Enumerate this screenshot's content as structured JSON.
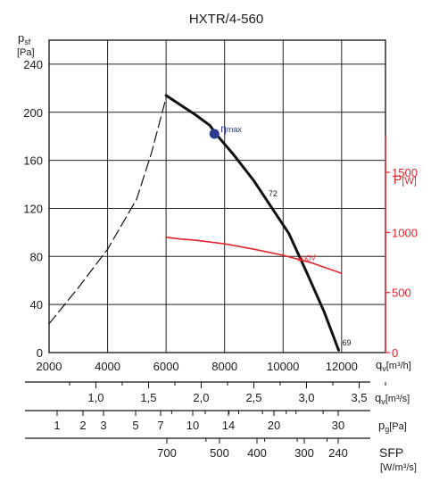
{
  "chart_data": {
    "type": "line",
    "title": "HXTR/4-560",
    "y_left": {
      "label": "p",
      "label_sub": "sf",
      "unit": "[Pa]",
      "range": [
        0,
        260
      ],
      "ticks": [
        0,
        40,
        80,
        120,
        160,
        200,
        240
      ]
    },
    "y_right": {
      "label": "P",
      "unit": "[W]",
      "range": [
        0,
        2600
      ],
      "ticks": [
        0,
        500,
        1000,
        1500
      ]
    },
    "x_axis": {
      "label": "q",
      "label_sub": "v",
      "unit": "[m³/h]",
      "range": [
        2000,
        13500
      ],
      "ticks": [
        2000,
        4000,
        6000,
        8000,
        10000,
        12000
      ],
      "tick_labels": [
        "2000",
        "4000",
        "6000",
        "8000",
        "10000",
        "12000"
      ]
    },
    "scales": [
      {
        "label": "q",
        "label_sub": "v",
        "unit": "[m³/s]",
        "ticks": [
          1.0,
          1.5,
          2.0,
          2.5,
          3.0,
          3.5
        ],
        "tick_labels": [
          "1,0",
          "1,5",
          "2,0",
          "2,5",
          "3,0",
          "3,5"
        ]
      },
      {
        "label": "p",
        "label_sub": "g",
        "unit": "[Pa]",
        "ticks": [
          1,
          2,
          3,
          5,
          7,
          10,
          14,
          20,
          30
        ],
        "tick_labels": [
          "1",
          "2",
          "3",
          "5",
          "7",
          "10",
          "14",
          "20",
          "30"
        ]
      },
      {
        "label": "SFP",
        "unit": "[W/m³/s]",
        "ticks": [
          700,
          500,
          400,
          300,
          240
        ],
        "tick_labels": [
          "700",
          "500",
          "400",
          "300",
          "240"
        ]
      }
    ],
    "series": [
      {
        "name": "",
        "axis": "left",
        "style": "solid",
        "color": "#111111",
        "x": [
          6000,
          6500,
          7000,
          7500,
          7700,
          8300,
          9000,
          9600,
          10200,
          10800,
          11400,
          11900
        ],
        "y": [
          214,
          206,
          198,
          189,
          182,
          165,
          143,
          121,
          99,
          67,
          34,
          2
        ]
      },
      {
        "name": "",
        "axis": "left",
        "style": "dashed",
        "color": "#111111",
        "x": [
          2000,
          3000,
          4000,
          5000,
          5500,
          6000
        ],
        "y": [
          24,
          54,
          86,
          128,
          166,
          212
        ]
      },
      {
        "name": "",
        "axis": "right",
        "style": "solid",
        "color": "#e2242b",
        "x": [
          6000,
          6500,
          7000,
          8000,
          9000,
          10000,
          11000,
          12000
        ],
        "y": [
          960,
          945,
          935,
          905,
          860,
          810,
          745,
          660
        ]
      }
    ],
    "markers": [
      {
        "label": "η",
        "label_sub": "max",
        "x": 7650,
        "y": 182,
        "color": "#2b3990"
      }
    ],
    "annotations": [
      {
        "text": "72",
        "x": 9500,
        "y": 130
      },
      {
        "text": "400V",
        "x": 10500,
        "y": 75,
        "color": "#e2242b"
      },
      {
        "text": "69",
        "x": 12020,
        "y": 6
      }
    ],
    "grid": true
  }
}
